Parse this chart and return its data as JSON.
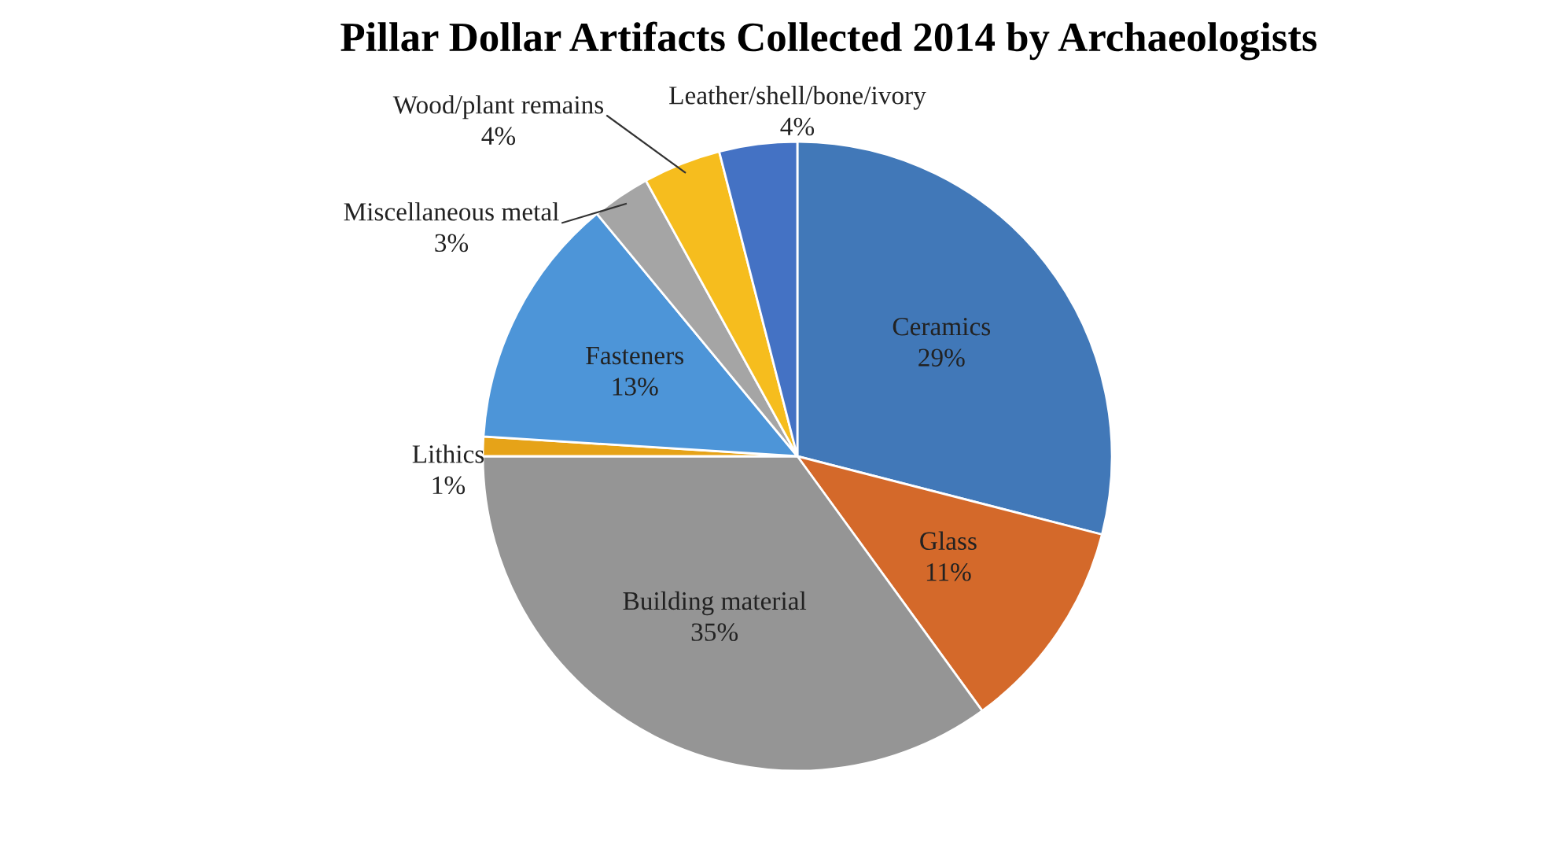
{
  "chart_data": {
    "type": "pie",
    "title": "Pillar Dollar Artifacts Collected 2014 by Archaeologists",
    "categories": [
      "Ceramics",
      "Glass",
      "Building material",
      "Lithics",
      "Fasteners",
      "Miscellaneous metal",
      "Wood/plant remains",
      "Leather/shell/bone/ivory"
    ],
    "values": [
      29,
      11,
      35,
      1,
      13,
      3,
      4,
      4
    ],
    "value_labels": [
      "29%",
      "11%",
      "35%",
      "1%",
      "13%",
      "3%",
      "4%",
      "4%"
    ],
    "colors": [
      "#4178b8",
      "#d4692a",
      "#959595",
      "#e6a318",
      "#4d95d8",
      "#a5a5a5",
      "#f6bd1e",
      "#4472c4"
    ]
  }
}
